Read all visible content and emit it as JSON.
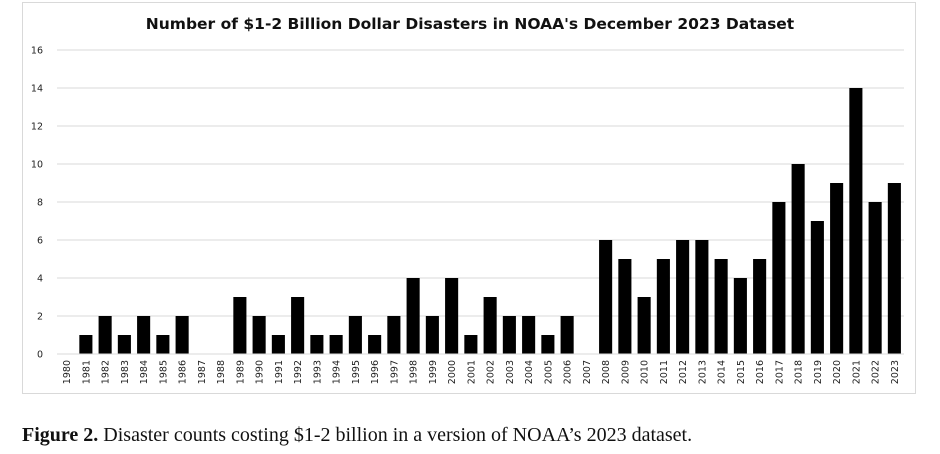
{
  "chart_data": {
    "type": "bar",
    "title": "Number of $1-2 Billion Dollar Disasters in NOAA's December 2023 Dataset",
    "xlabel": "",
    "ylabel": "",
    "ylim": [
      0,
      16
    ],
    "yticks": [
      0,
      2,
      4,
      6,
      8,
      10,
      12,
      14,
      16
    ],
    "grid": true,
    "legend": "none",
    "bar_color": "#000000",
    "categories": [
      "1980",
      "1981",
      "1982",
      "1983",
      "1984",
      "1985",
      "1986",
      "1987",
      "1988",
      "1989",
      "1990",
      "1991",
      "1992",
      "1993",
      "1994",
      "1995",
      "1996",
      "1997",
      "1998",
      "1999",
      "2000",
      "2001",
      "2002",
      "2003",
      "2004",
      "2005",
      "2006",
      "2007",
      "2008",
      "2009",
      "2010",
      "2011",
      "2012",
      "2013",
      "2014",
      "2015",
      "2016",
      "2017",
      "2018",
      "2019",
      "2020",
      "2021",
      "2022",
      "2023"
    ],
    "values": [
      0,
      1,
      2,
      1,
      2,
      1,
      2,
      0,
      0,
      3,
      2,
      1,
      3,
      1,
      1,
      2,
      1,
      2,
      4,
      2,
      4,
      1,
      3,
      2,
      2,
      1,
      2,
      0,
      6,
      5,
      3,
      5,
      6,
      6,
      5,
      4,
      5,
      8,
      10,
      7,
      9,
      14,
      8,
      9
    ]
  },
  "caption": {
    "label": "Figure 2.",
    "text": " Disaster counts costing $1-2 billion in a version of NOAA’s 2023 dataset."
  }
}
